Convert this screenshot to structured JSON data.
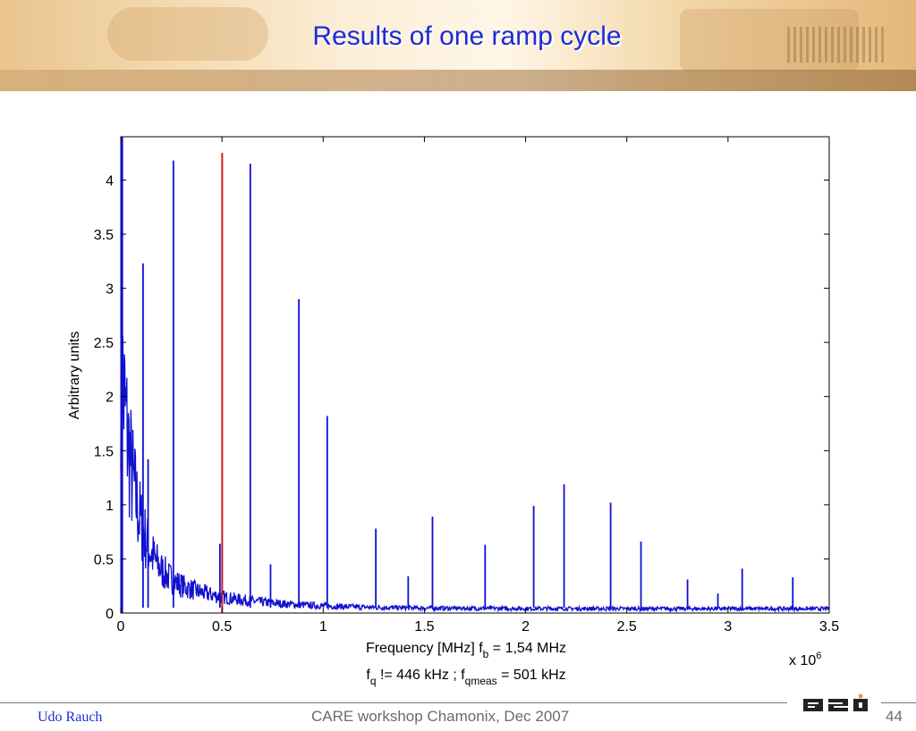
{
  "slide": {
    "title": "Results of one ramp cycle",
    "footer_author": "Udo Rauch",
    "footer_center": "CARE workshop Chamonix, Dec 2007",
    "page_number": "44",
    "logo_text": "GSI"
  },
  "chart_data": {
    "type": "line",
    "ylabel": "Arbitrary units",
    "xlabel_line1": {
      "main": "Frequency [MHz] f",
      "sub": "b",
      "rest": " = 1,54 MHz"
    },
    "xlabel_line2": {
      "a": "f",
      "a_sub": "q",
      "b": " != 446 kHz ; f",
      "b_sub": "qmeas",
      "c": " = 501 kHz"
    },
    "x_multiplier": {
      "base": "x 10",
      "exp": "6"
    },
    "xlim": [
      0,
      3.5
    ],
    "ylim": [
      0,
      4.4
    ],
    "x_ticks": [
      0,
      0.5,
      1,
      1.5,
      2,
      2.5,
      3,
      3.5
    ],
    "x_tick_labels": [
      "0",
      "0.5",
      "1",
      "1.5",
      "2",
      "2.5",
      "3",
      "3.5"
    ],
    "y_ticks": [
      0,
      0.5,
      1,
      1.5,
      2,
      2.5,
      3,
      3.5,
      4
    ],
    "y_tick_labels": [
      "0",
      "0.5",
      "1",
      "1.5",
      "2",
      "2.5",
      "3",
      "3.5",
      "4"
    ],
    "grid": false,
    "series_color": "#1010d0",
    "marker_color": "#c82020",
    "marker_x": 0.501,
    "peaks": [
      {
        "x": 0.11,
        "y": 3.23
      },
      {
        "x": 0.135,
        "y": 1.42
      },
      {
        "x": 0.26,
        "y": 4.18
      },
      {
        "x": 0.49,
        "y": 0.64
      },
      {
        "x": 0.64,
        "y": 4.15
      },
      {
        "x": 0.74,
        "y": 0.45
      },
      {
        "x": 0.88,
        "y": 2.9
      },
      {
        "x": 1.02,
        "y": 1.82
      },
      {
        "x": 1.26,
        "y": 0.78
      },
      {
        "x": 1.42,
        "y": 0.34
      },
      {
        "x": 1.54,
        "y": 0.89
      },
      {
        "x": 1.8,
        "y": 0.63
      },
      {
        "x": 2.04,
        "y": 0.99
      },
      {
        "x": 2.19,
        "y": 1.19
      },
      {
        "x": 2.42,
        "y": 1.02
      },
      {
        "x": 2.57,
        "y": 0.66
      },
      {
        "x": 2.8,
        "y": 0.31
      },
      {
        "x": 2.95,
        "y": 0.18
      },
      {
        "x": 3.07,
        "y": 0.41
      },
      {
        "x": 3.32,
        "y": 0.33
      }
    ]
  }
}
